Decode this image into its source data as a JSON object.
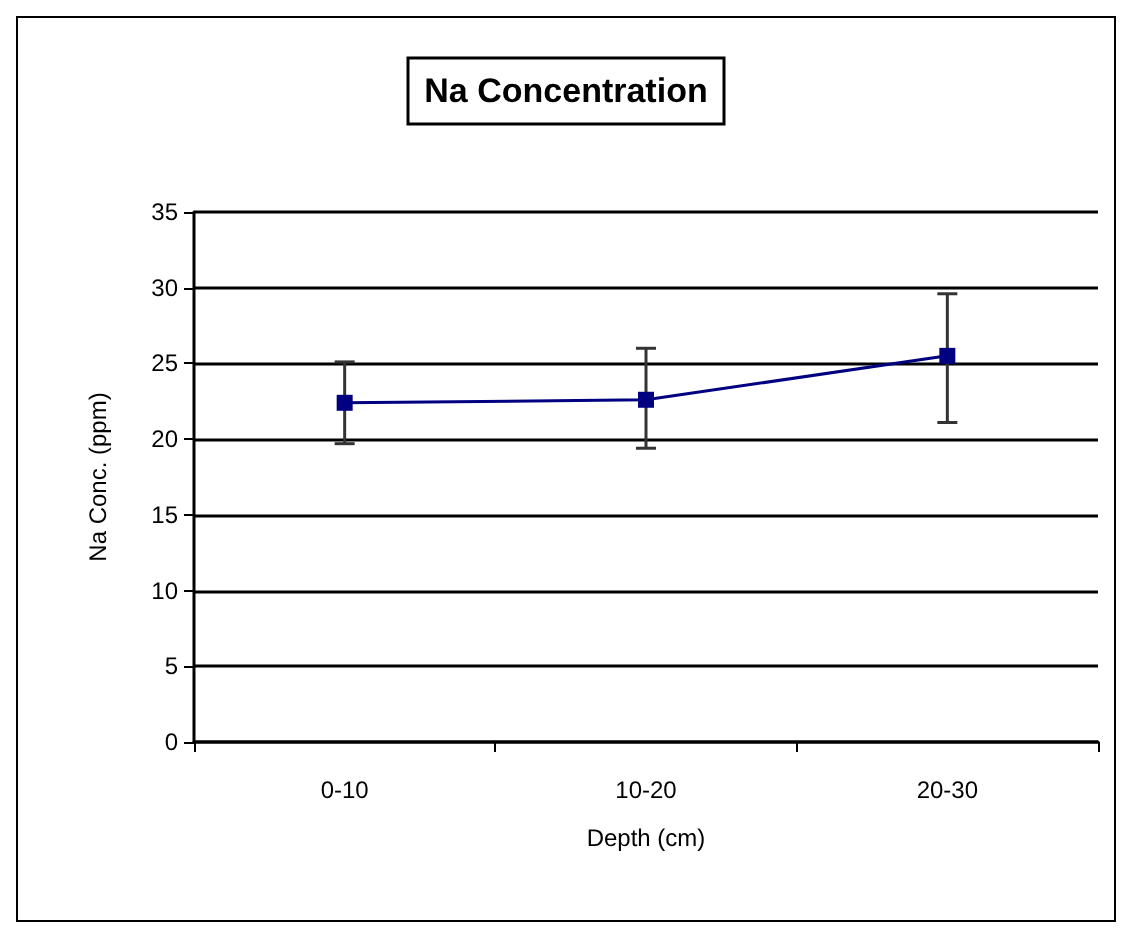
{
  "chart_data": {
    "type": "line",
    "title": "Na Concentration",
    "xlabel": "Depth (cm)",
    "ylabel": "Na Conc. (ppm)",
    "categories": [
      "0-10",
      "10-20",
      "20-30"
    ],
    "series": [
      {
        "color": "#000080",
        "values": [
          22.4,
          22.6,
          25.5
        ],
        "errors": [
          [
            19.7,
            25.1
          ],
          [
            19.4,
            26.0
          ],
          [
            21.1,
            29.6
          ]
        ]
      }
    ],
    "ylim": [
      0,
      35
    ],
    "yticks": [
      0,
      5,
      10,
      15,
      20,
      25,
      30,
      35
    ],
    "grid": "y",
    "marker": "square",
    "line_style": "solid"
  }
}
